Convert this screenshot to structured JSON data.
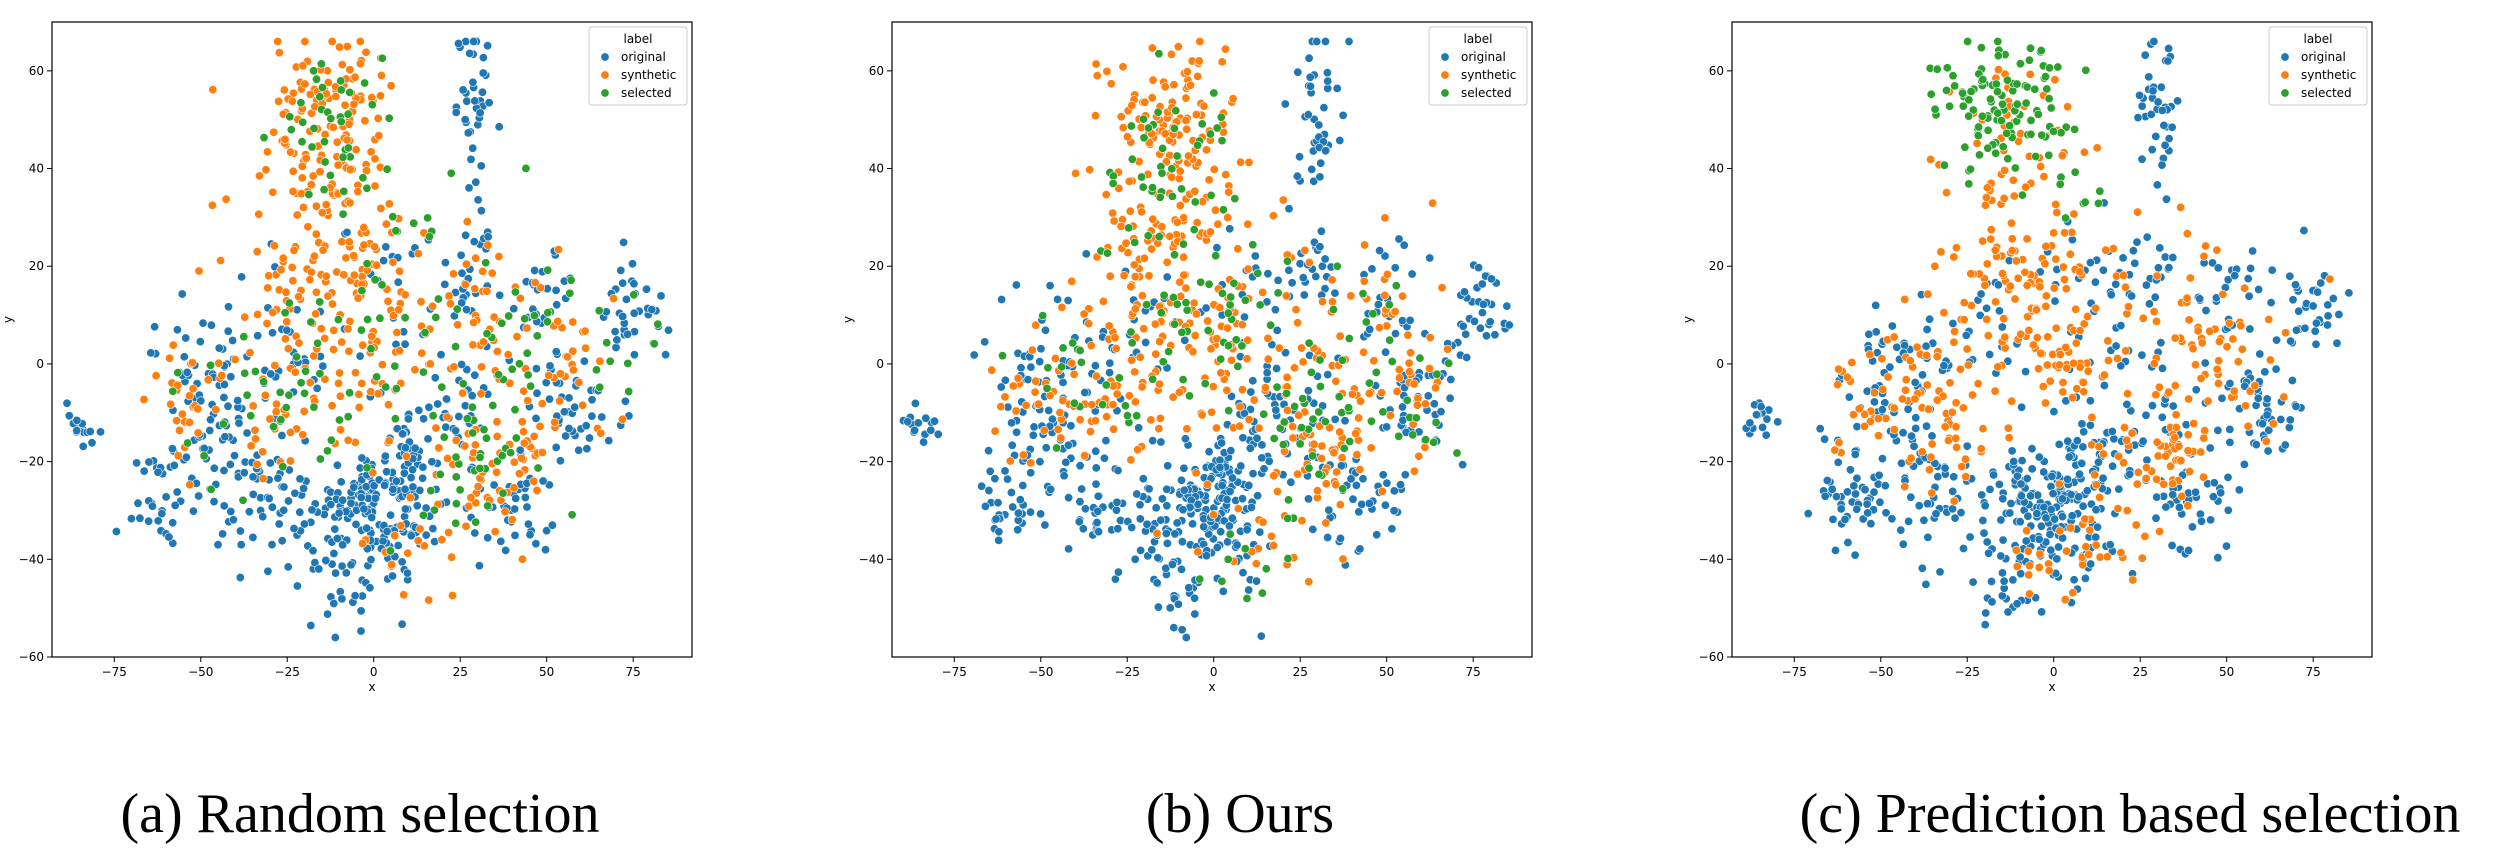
{
  "chart_data": [
    {
      "type": "scatter",
      "caption": "(a) Random selection",
      "xlabel": "x",
      "ylabel": "y",
      "xlim": [
        -93,
        92
      ],
      "ylim": [
        -60,
        70
      ],
      "xticks": [
        -75,
        -50,
        -25,
        0,
        25,
        50,
        75
      ],
      "yticks": [
        -60,
        -40,
        -20,
        0,
        20,
        40,
        60
      ],
      "grid": false,
      "legend": {
        "title": "label",
        "placement": "top-right",
        "entries": [
          "original",
          "synthetic",
          "selected"
        ]
      },
      "series": [
        {
          "name": "original",
          "color": "#1f77b4",
          "clusters": [
            [
              -2,
              -27,
              7,
              5,
              110
            ],
            [
              5,
              -38,
              7,
              5,
              35
            ],
            [
              -12,
              -45,
              6,
              5,
              25
            ],
            [
              30,
              52,
              3,
              9,
              40
            ],
            [
              28,
              20,
              4,
              4,
              20
            ],
            [
              75,
              10,
              5,
              5,
              35
            ],
            [
              60,
              -8,
              6,
              6,
              45
            ],
            [
              -85,
              -12,
              3,
              2,
              15
            ],
            [
              -60,
              -28,
              5,
              5,
              35
            ],
            [
              -45,
              -18,
              8,
              7,
              45
            ],
            [
              -30,
              -28,
              8,
              7,
              40
            ],
            [
              20,
              -10,
              10,
              8,
              55
            ],
            [
              40,
              -28,
              8,
              6,
              45
            ],
            [
              -50,
              0,
              8,
              7,
              40
            ],
            [
              -25,
              5,
              8,
              7,
              30
            ],
            [
              10,
              15,
              10,
              8,
              25
            ],
            [
              50,
              15,
              6,
              6,
              25
            ],
            [
              10,
              -22,
              5,
              5,
              30
            ],
            [
              -15,
              -35,
              8,
              5,
              20
            ]
          ]
        },
        {
          "series_ref": "synthetic",
          "name": "synthetic",
          "color": "#ff7f0e",
          "clusters": [
            [
              -12,
              52,
              9,
              7,
              90
            ],
            [
              -15,
              35,
              10,
              8,
              60
            ],
            [
              -5,
              20,
              12,
              8,
              50
            ],
            [
              5,
              0,
              12,
              10,
              55
            ],
            [
              -30,
              -5,
              12,
              10,
              60
            ],
            [
              35,
              -18,
              10,
              8,
              55
            ],
            [
              40,
              10,
              12,
              10,
              45
            ],
            [
              -55,
              -8,
              6,
              6,
              20
            ],
            [
              15,
              -35,
              8,
              6,
              20
            ],
            [
              55,
              -5,
              8,
              6,
              20
            ],
            [
              -20,
              15,
              10,
              8,
              30
            ]
          ]
        },
        {
          "name": "selected",
          "color": "#2ca02c",
          "clusters": [
            [
              -10,
              50,
              9,
              8,
              40
            ],
            [
              0,
              5,
              15,
              12,
              45
            ],
            [
              35,
              -15,
              10,
              8,
              30
            ],
            [
              -30,
              -8,
              12,
              8,
              25
            ],
            [
              40,
              10,
              10,
              10,
              20
            ],
            [
              20,
              -30,
              8,
              6,
              10
            ],
            [
              70,
              5,
              6,
              6,
              10
            ]
          ]
        }
      ]
    },
    {
      "type": "scatter",
      "caption": "(b) Ours",
      "xlabel": "x",
      "ylabel": "y",
      "xlim": [
        -93,
        92
      ],
      "ylim": [
        -60,
        70
      ],
      "xticks": [
        -75,
        -50,
        -25,
        0,
        25,
        50,
        75
      ],
      "yticks": [
        -40,
        -20,
        0,
        20,
        40,
        60
      ],
      "grid": false,
      "legend": {
        "title": "label",
        "placement": "top-right",
        "entries": [
          "original",
          "synthetic",
          "selected"
        ]
      },
      "series": [
        {
          "name": "original",
          "color": "#1f77b4",
          "clusters": [
            [
              -2,
              -27,
              7,
              5,
              110
            ],
            [
              5,
              -38,
              7,
              5,
              35
            ],
            [
              -12,
              -45,
              6,
              5,
              25
            ],
            [
              30,
              52,
              3,
              9,
              40
            ],
            [
              28,
              20,
              4,
              4,
              20
            ],
            [
              75,
              10,
              5,
              5,
              35
            ],
            [
              60,
              -8,
              6,
              6,
              45
            ],
            [
              -85,
              -12,
              3,
              2,
              15
            ],
            [
              -60,
              -28,
              5,
              5,
              35
            ],
            [
              -45,
              -18,
              8,
              7,
              45
            ],
            [
              -30,
              -28,
              8,
              7,
              40
            ],
            [
              20,
              -10,
              10,
              8,
              55
            ],
            [
              40,
              -28,
              8,
              6,
              45
            ],
            [
              -50,
              0,
              8,
              7,
              40
            ],
            [
              -25,
              5,
              8,
              7,
              30
            ],
            [
              10,
              15,
              10,
              8,
              25
            ],
            [
              50,
              15,
              6,
              6,
              25
            ],
            [
              10,
              -22,
              5,
              5,
              30
            ],
            [
              -15,
              -35,
              8,
              5,
              20
            ]
          ]
        },
        {
          "name": "synthetic",
          "color": "#ff7f0e",
          "clusters": [
            [
              -12,
              52,
              9,
              7,
              90
            ],
            [
              -15,
              35,
              10,
              8,
              60
            ],
            [
              -5,
              20,
              12,
              8,
              50
            ],
            [
              5,
              0,
              12,
              10,
              55
            ],
            [
              -30,
              -5,
              12,
              10,
              60
            ],
            [
              35,
              -18,
              10,
              8,
              55
            ],
            [
              40,
              10,
              12,
              10,
              45
            ],
            [
              -55,
              -8,
              6,
              6,
              20
            ],
            [
              15,
              -35,
              8,
              6,
              20
            ],
            [
              55,
              -5,
              8,
              6,
              20
            ],
            [
              -20,
              15,
              10,
              8,
              30
            ]
          ]
        },
        {
          "name": "selected",
          "color": "#2ca02c",
          "clusters": [
            [
              -12,
              45,
              10,
              10,
              35
            ],
            [
              -5,
              5,
              14,
              10,
              40
            ],
            [
              30,
              -15,
              12,
              8,
              30
            ],
            [
              -35,
              -5,
              10,
              8,
              20
            ],
            [
              40,
              5,
              10,
              10,
              20
            ],
            [
              -20,
              25,
              10,
              8,
              15
            ],
            [
              60,
              -10,
              6,
              6,
              10
            ],
            [
              10,
              -40,
              8,
              5,
              10
            ]
          ]
        }
      ]
    },
    {
      "type": "scatter",
      "caption": "(c) Prediction based selection",
      "xlabel": "x",
      "ylabel": "y",
      "xlim": [
        -93,
        92
      ],
      "ylim": [
        -60,
        70
      ],
      "xticks": [
        -75,
        -50,
        -25,
        0,
        25,
        50,
        75
      ],
      "yticks": [
        -60,
        -40,
        -20,
        0,
        20,
        40,
        60
      ],
      "grid": false,
      "legend": {
        "title": "label",
        "placement": "top-right",
        "entries": [
          "original",
          "synthetic",
          "selected"
        ]
      },
      "series": [
        {
          "name": "original",
          "color": "#1f77b4",
          "clusters": [
            [
              -2,
              -27,
              7,
              5,
              110
            ],
            [
              5,
              -38,
              7,
              5,
              35
            ],
            [
              -12,
              -45,
              6,
              5,
              25
            ],
            [
              30,
              52,
              3,
              9,
              40
            ],
            [
              28,
              20,
              4,
              4,
              20
            ],
            [
              75,
              10,
              5,
              5,
              35
            ],
            [
              60,
              -8,
              6,
              6,
              45
            ],
            [
              -85,
              -12,
              3,
              2,
              15
            ],
            [
              -60,
              -28,
              5,
              5,
              35
            ],
            [
              -45,
              -18,
              8,
              7,
              45
            ],
            [
              -30,
              -28,
              8,
              7,
              40
            ],
            [
              20,
              -10,
              10,
              8,
              55
            ],
            [
              40,
              -28,
              8,
              6,
              45
            ],
            [
              -50,
              0,
              8,
              7,
              40
            ],
            [
              -25,
              5,
              8,
              7,
              30
            ],
            [
              10,
              15,
              10,
              8,
              25
            ],
            [
              50,
              15,
              6,
              6,
              25
            ],
            [
              10,
              -22,
              5,
              5,
              30
            ],
            [
              -15,
              -35,
              8,
              5,
              20
            ]
          ]
        },
        {
          "name": "synthetic",
          "color": "#ff7f0e",
          "clusters": [
            [
              -12,
              45,
              9,
              8,
              50
            ],
            [
              -5,
              20,
              12,
              8,
              50
            ],
            [
              2,
              2,
              10,
              6,
              60
            ],
            [
              -35,
              -8,
              10,
              8,
              70
            ],
            [
              30,
              -18,
              10,
              8,
              60
            ],
            [
              40,
              10,
              12,
              10,
              45
            ],
            [
              -55,
              -8,
              6,
              6,
              20
            ],
            [
              15,
              -35,
              8,
              6,
              25
            ],
            [
              55,
              -5,
              8,
              6,
              20
            ],
            [
              -20,
              15,
              10,
              8,
              30
            ],
            [
              -5,
              -40,
              6,
              5,
              15
            ]
          ]
        },
        {
          "name": "selected",
          "color": "#2ca02c",
          "clusters": [
            [
              -14,
              55,
              9,
              7,
              90
            ],
            [
              -20,
              45,
              7,
              5,
              20
            ],
            [
              5,
              35,
              6,
              6,
              10
            ]
          ]
        }
      ]
    }
  ]
}
